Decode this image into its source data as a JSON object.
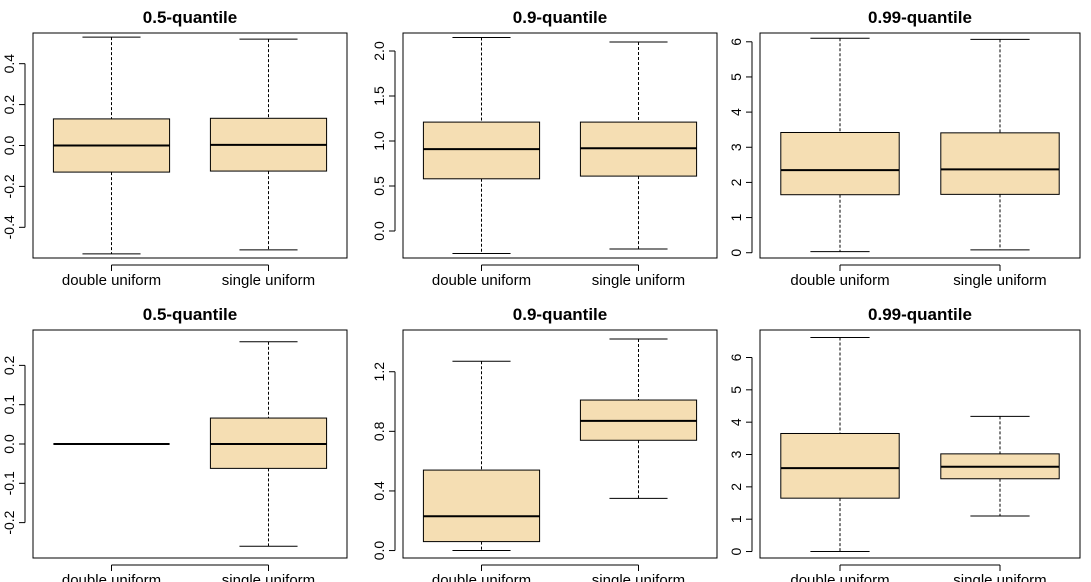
{
  "colors": {
    "box_fill": "#f5deb3",
    "line": "#000000",
    "background": "#ffffff"
  },
  "chart_data": [
    {
      "type": "boxplot",
      "title": "0.5-quantile",
      "categories": [
        "double uniform",
        "single uniform"
      ],
      "ylim": [
        -0.55,
        0.55
      ],
      "yticks": [
        -0.4,
        -0.2,
        0.0,
        0.2,
        0.4
      ],
      "ytick_labels": [
        "-0.4",
        "-0.2",
        "0.0",
        "0.2",
        "0.4"
      ],
      "boxes": [
        {
          "min": -0.53,
          "q1": -0.13,
          "median": 0.0,
          "q3": 0.13,
          "max": 0.53
        },
        {
          "min": -0.51,
          "q1": -0.125,
          "median": 0.003,
          "q3": 0.133,
          "max": 0.52
        }
      ]
    },
    {
      "type": "boxplot",
      "title": "0.9-quantile",
      "categories": [
        "double uniform",
        "single uniform"
      ],
      "ylim": [
        -0.3,
        2.2
      ],
      "yticks": [
        0.0,
        0.5,
        1.0,
        1.5,
        2.0
      ],
      "ytick_labels": [
        "0.0",
        "0.5",
        "1.0",
        "1.5",
        "2.0"
      ],
      "boxes": [
        {
          "min": -0.25,
          "q1": 0.58,
          "median": 0.91,
          "q3": 1.21,
          "max": 2.15
        },
        {
          "min": -0.2,
          "q1": 0.61,
          "median": 0.92,
          "q3": 1.21,
          "max": 2.1
        }
      ]
    },
    {
      "type": "boxplot",
      "title": "0.99-quantile",
      "categories": [
        "double uniform",
        "single uniform"
      ],
      "ylim": [
        -0.15,
        6.25
      ],
      "yticks": [
        0,
        1,
        2,
        3,
        4,
        5,
        6
      ],
      "ytick_labels": [
        "0",
        "1",
        "2",
        "3",
        "4",
        "5",
        "6"
      ],
      "boxes": [
        {
          "min": 0.03,
          "q1": 1.65,
          "median": 2.35,
          "q3": 3.42,
          "max": 6.1
        },
        {
          "min": 0.08,
          "q1": 1.66,
          "median": 2.37,
          "q3": 3.41,
          "max": 6.07
        }
      ]
    },
    {
      "type": "boxplot",
      "title": "0.5-quantile",
      "categories": [
        "double uniform",
        "single uniform"
      ],
      "ylim": [
        -0.29,
        0.29
      ],
      "yticks": [
        -0.2,
        -0.1,
        0.0,
        0.1,
        0.2
      ],
      "ytick_labels": [
        "-0.2",
        "-0.1",
        "0.0",
        "0.1",
        "0.2"
      ],
      "boxes": [
        {
          "min": 0.0,
          "q1": 0.0,
          "median": 0.0,
          "q3": 0.0,
          "max": 0.0
        },
        {
          "min": -0.26,
          "q1": -0.062,
          "median": 0.0,
          "q3": 0.066,
          "max": 0.26
        }
      ]
    },
    {
      "type": "boxplot",
      "title": "0.9-quantile",
      "categories": [
        "double uniform",
        "single uniform"
      ],
      "ylim": [
        -0.05,
        1.48
      ],
      "yticks": [
        0.0,
        0.4,
        0.8,
        1.2
      ],
      "ytick_labels": [
        "0.0",
        "0.4",
        "0.8",
        "1.2"
      ],
      "boxes": [
        {
          "min": 0.0,
          "q1": 0.06,
          "median": 0.23,
          "q3": 0.54,
          "max": 1.27
        },
        {
          "min": 0.35,
          "q1": 0.74,
          "median": 0.87,
          "q3": 1.01,
          "max": 1.42
        }
      ]
    },
    {
      "type": "boxplot",
      "title": "0.99-quantile",
      "categories": [
        "double uniform",
        "single uniform"
      ],
      "ylim": [
        -0.2,
        6.85
      ],
      "yticks": [
        0,
        1,
        2,
        3,
        4,
        5,
        6
      ],
      "ytick_labels": [
        "0",
        "1",
        "2",
        "3",
        "4",
        "5",
        "6"
      ],
      "boxes": [
        {
          "min": 0.0,
          "q1": 1.65,
          "median": 2.58,
          "q3": 3.65,
          "max": 6.62
        },
        {
          "min": 1.1,
          "q1": 2.25,
          "median": 2.62,
          "q3": 3.02,
          "max": 4.18
        }
      ]
    }
  ]
}
